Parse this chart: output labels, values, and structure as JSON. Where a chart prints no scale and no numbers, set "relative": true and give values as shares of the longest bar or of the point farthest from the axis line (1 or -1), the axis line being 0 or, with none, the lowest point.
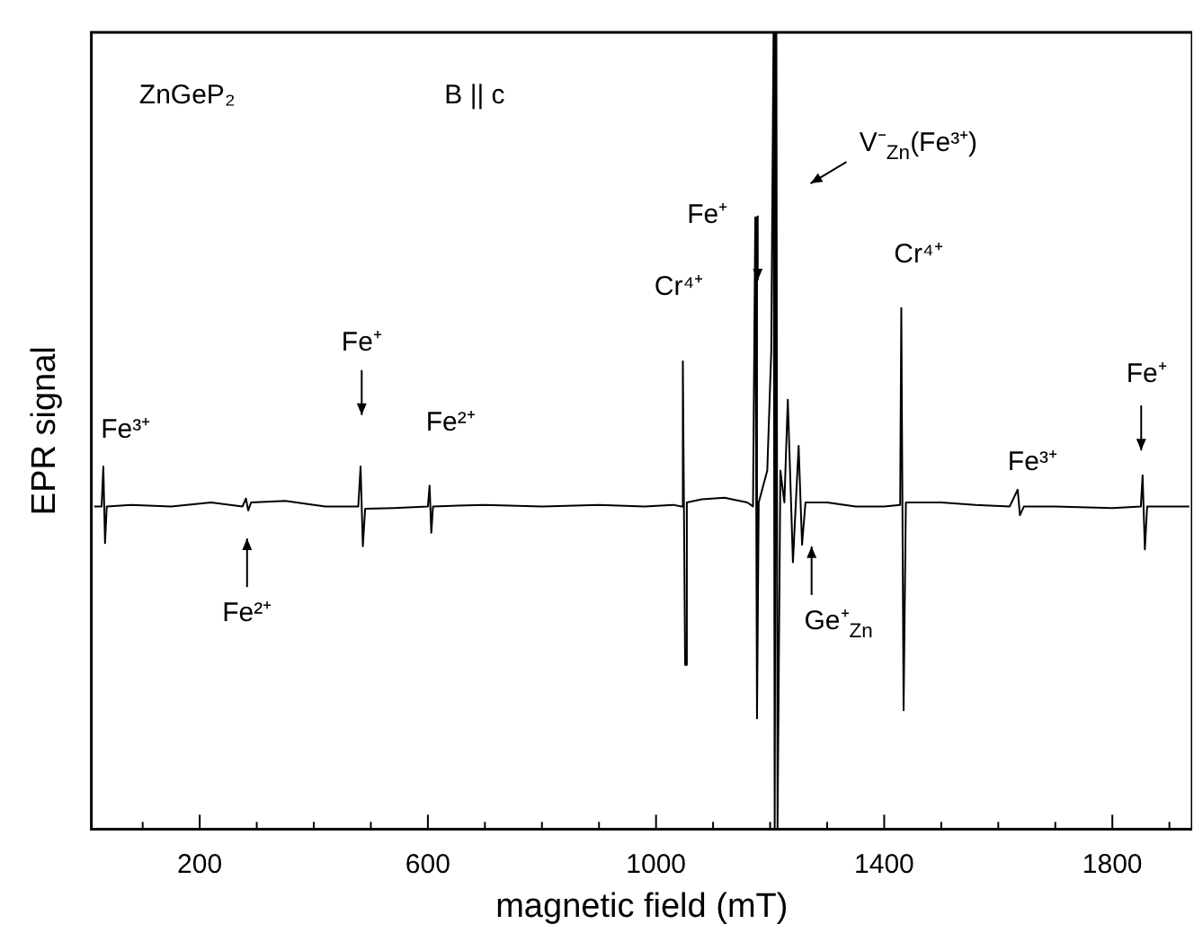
{
  "chart_data": {
    "type": "line",
    "relative": true,
    "xlabel": "magnetic field (mT)",
    "ylabel": "EPR signal",
    "xlim": [
      10,
      1940
    ],
    "xticks": [
      {
        "value": 100,
        "label": null
      },
      200,
      {
        "value": 300,
        "label": null
      },
      {
        "value": 400,
        "label": null
      },
      {
        "value": 500,
        "label": null
      },
      600,
      {
        "value": 700,
        "label": null
      },
      {
        "value": 800,
        "label": null
      },
      {
        "value": 900,
        "label": null
      },
      1000,
      {
        "value": 1100,
        "label": null
      },
      {
        "value": 1200,
        "label": null
      },
      {
        "value": 1300,
        "label": null
      },
      1400,
      {
        "value": 1500,
        "label": null
      },
      {
        "value": 1600,
        "label": null
      },
      {
        "value": 1700,
        "label": null
      },
      1800,
      {
        "value": 1900,
        "label": null
      }
    ],
    "x": [
      15,
      28,
      31,
      34,
      37,
      80,
      150,
      220,
      275,
      281,
      285,
      290,
      350,
      420,
      478,
      482,
      486,
      490,
      540,
      600,
      603,
      606,
      609,
      700,
      800,
      900,
      980,
      1030,
      1045,
      1047,
      1051,
      1054,
      1080,
      1120,
      1160,
      1170,
      1174,
      1177,
      1180,
      1195,
      1202,
      1206,
      1208,
      1211,
      1213,
      1218,
      1225,
      1231,
      1240,
      1250,
      1256,
      1262,
      1300,
      1350,
      1400,
      1428,
      1430,
      1434,
      1438,
      1500,
      1560,
      1620,
      1634,
      1638,
      1645,
      1700,
      1800,
      1850,
      1853,
      1857,
      1861,
      1900,
      1935
    ],
    "series": [
      {
        "color": "#000000",
        "values": [
          0.405,
          0.405,
          0.455,
          0.359,
          0.405,
          0.407,
          0.405,
          0.41,
          0.405,
          0.415,
          0.4,
          0.41,
          0.412,
          0.405,
          0.405,
          0.455,
          0.355,
          0.402,
          0.403,
          0.405,
          0.431,
          0.372,
          0.405,
          0.407,
          0.405,
          0.407,
          0.405,
          0.407,
          0.405,
          0.587,
          0.206,
          0.41,
          0.414,
          0.416,
          0.41,
          0.405,
          0.768,
          0.139,
          0.41,
          0.45,
          0.6,
          1,
          0,
          1,
          0,
          0.45,
          0.41,
          0.539,
          0.335,
          0.481,
          0.357,
          0.41,
          0.41,
          0.405,
          0.405,
          0.407,
          0.654,
          0.149,
          0.41,
          0.41,
          0.407,
          0.405,
          0.426,
          0.394,
          0.405,
          0.405,
          0.403,
          0.405,
          0.444,
          0.351,
          0.405,
          0.405,
          0.405
        ]
      }
    ],
    "annotations": [
      "ZnGeP₂",
      "B || c",
      "Fe³⁺",
      "Fe²⁺",
      "Fe⁺",
      "Fe²⁺",
      "Cr⁴⁺",
      "Fe⁺",
      "V⁻$_{Zn}$(Fe³⁺)",
      "Ge⁺$_{Zn}$",
      "Cr⁴⁺",
      "Fe³⁺",
      "Fe⁺"
    ]
  }
}
